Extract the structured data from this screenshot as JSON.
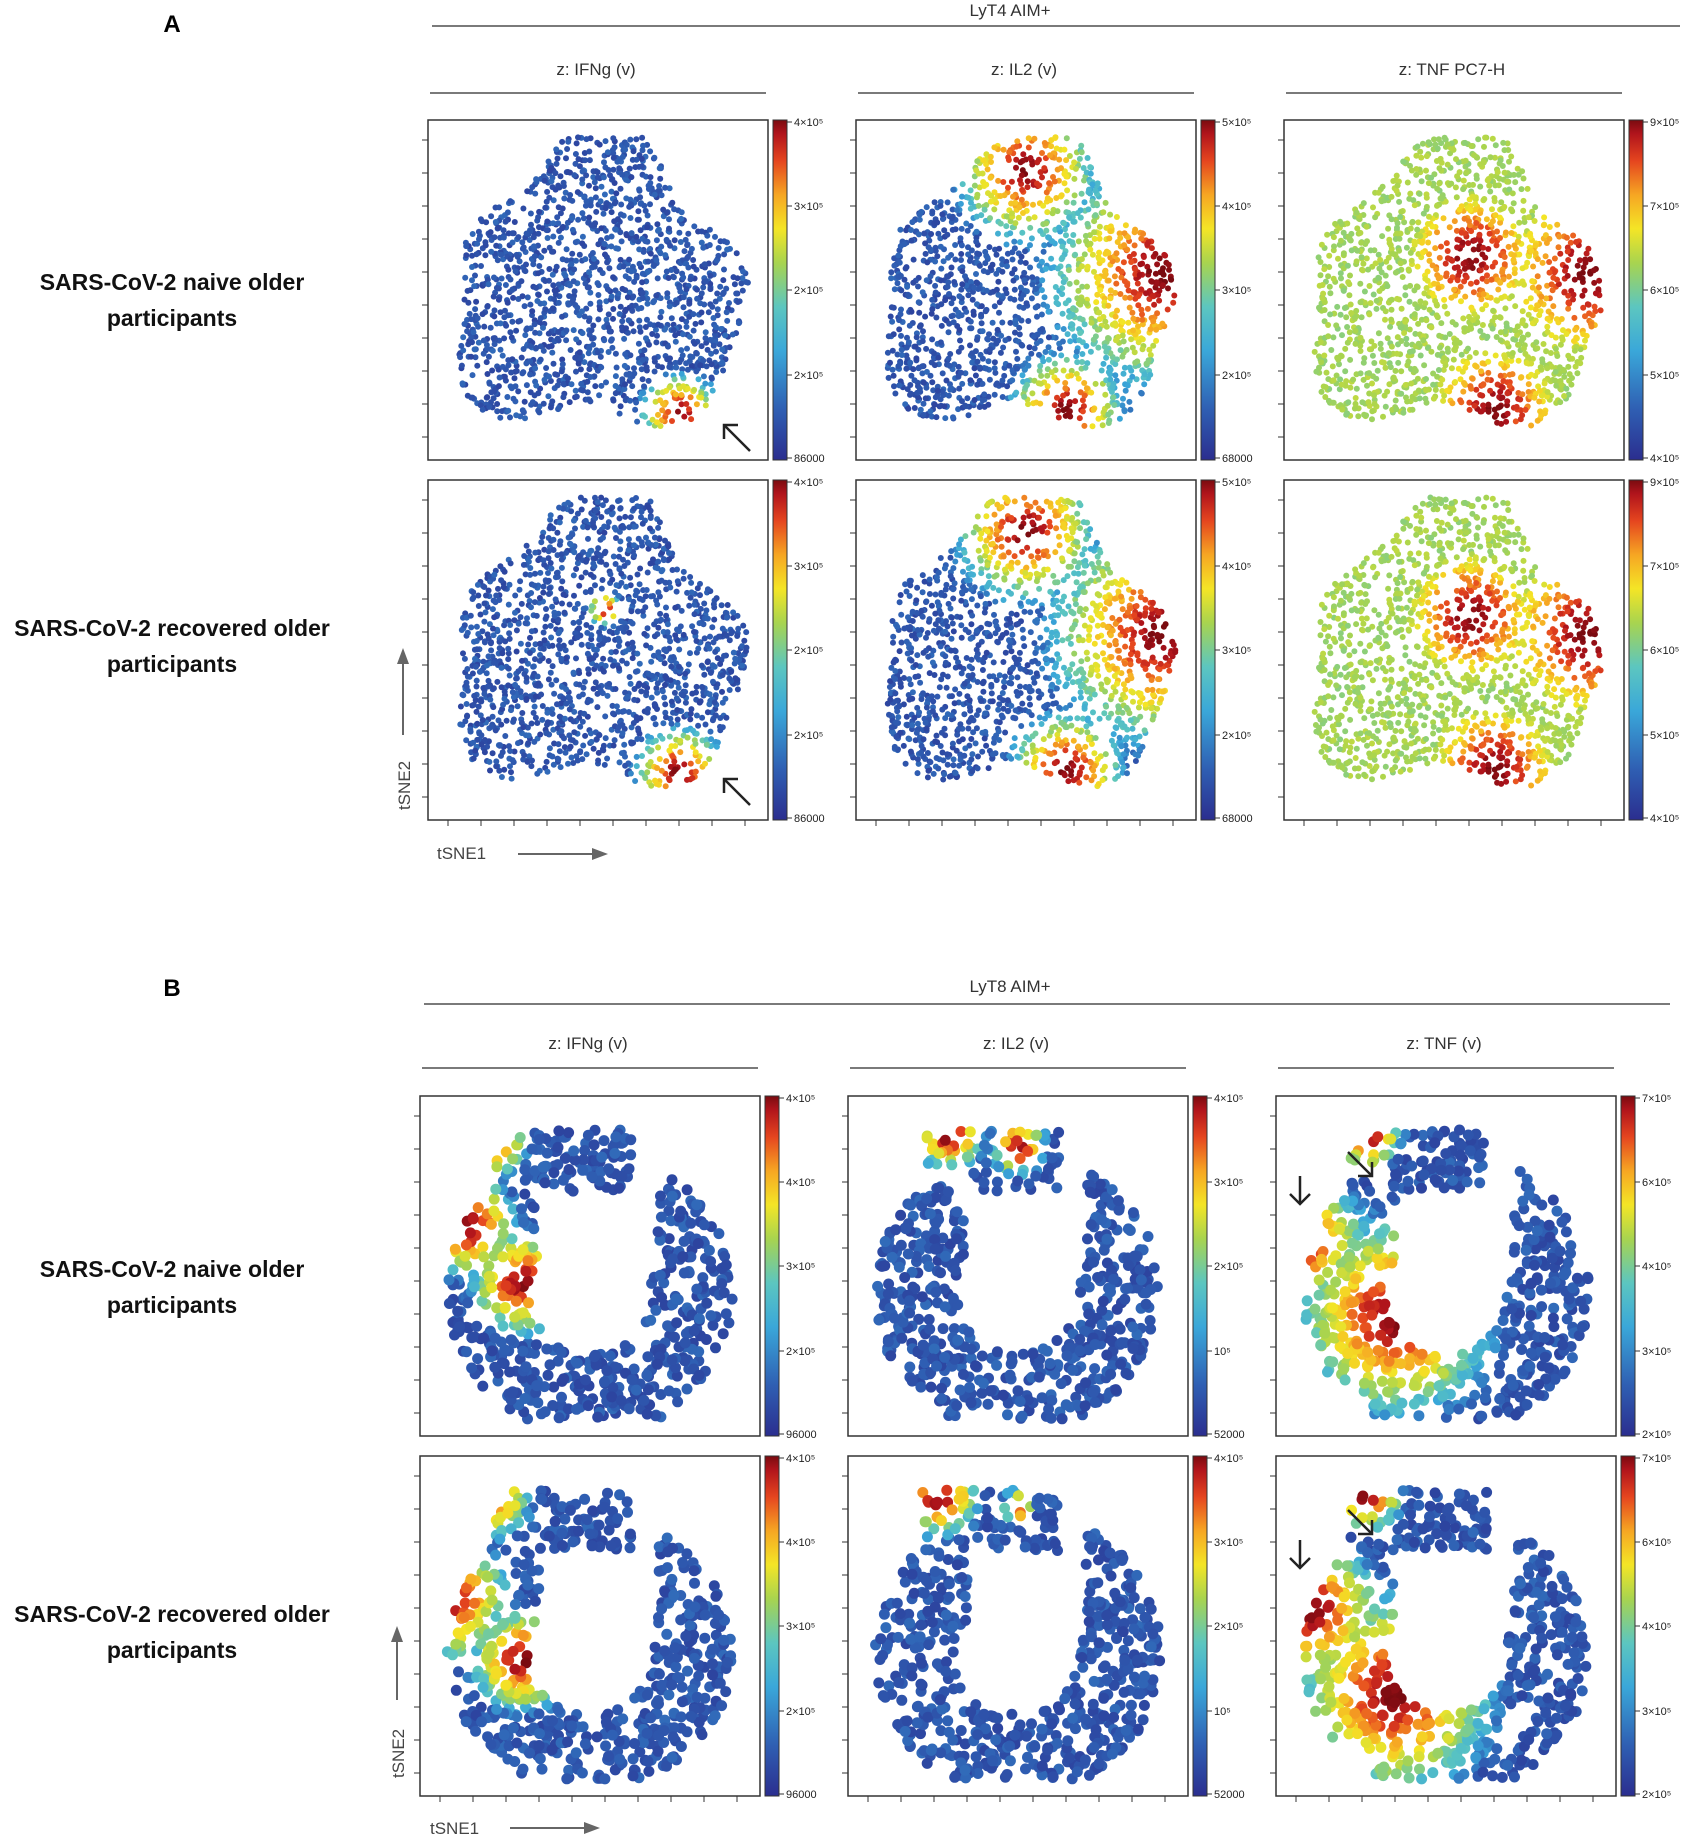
{
  "chart_data": {
    "type": "scatter",
    "x_axis_label": "tSNE1",
    "y_axis_label": "tSNE2",
    "panels": [
      {
        "letter": "A",
        "group_title": "LyT4 AIM+",
        "columns": [
          {
            "title": "z: IFNg (v)",
            "colorbar": [
              "4×10⁵",
              "3×10⁵",
              "2×10⁵",
              "2×10⁵",
              "86000"
            ]
          },
          {
            "title": "z: IL2 (v)",
            "colorbar": [
              "5×10⁵",
              "4×10⁵",
              "3×10⁵",
              "2×10⁵",
              "68000"
            ]
          },
          {
            "title": "z: TNF PC7-H",
            "colorbar": [
              "9×10⁵",
              "7×10⁵",
              "6×10⁵",
              "5×10⁵",
              "4×10⁵"
            ]
          }
        ],
        "rows": [
          {
            "label_line1": "SARS-CoV-2 naive older",
            "label_line2": "participants"
          },
          {
            "label_line1": "SARS-CoV-2 recovered older",
            "label_line2": "participants"
          }
        ]
      },
      {
        "letter": "B",
        "group_title": "LyT8 AIM+",
        "columns": [
          {
            "title": "z: IFNg (v)",
            "colorbar": [
              "4×10⁵",
              "4×10⁵",
              "3×10⁵",
              "2×10⁵",
              "96000"
            ]
          },
          {
            "title": "z: IL2 (v)",
            "colorbar": [
              "4×10⁵",
              "3×10⁵",
              "2×10⁵",
              "10⁵",
              "52000"
            ]
          },
          {
            "title": "z: TNF (v)",
            "colorbar": [
              "7×10⁵",
              "6×10⁵",
              "4×10⁵",
              "3×10⁵",
              "2×10⁵"
            ]
          }
        ],
        "rows": [
          {
            "label_line1": "SARS-CoV-2 naive older",
            "label_line2": "participants"
          },
          {
            "label_line1": "SARS-CoV-2 recovered older",
            "label_line2": "participants"
          }
        ]
      }
    ]
  },
  "colors": {
    "colormap": [
      "#2b2e8f",
      "#2f5fb3",
      "#3aa7d9",
      "#5cc6c0",
      "#a8d44f",
      "#f4e526",
      "#f6a623",
      "#e5451f",
      "#b0141c",
      "#7a0b10"
    ],
    "frame": "#333333",
    "rule": "#7a7a7a",
    "arrow": "#222222"
  }
}
